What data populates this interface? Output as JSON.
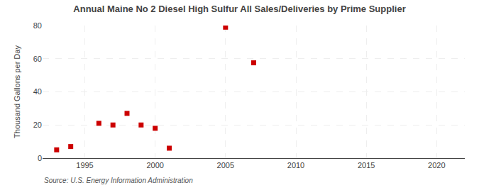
{
  "chart_data": {
    "type": "scatter",
    "title": "Annual Maine No 2 Diesel High Sulfur All Sales/Deliveries by Prime Supplier",
    "ylabel": "Thousand Gallons per Day",
    "annotations": [
      "Source: U.S. Energy Information Administration"
    ],
    "x": [
      1993,
      1994,
      1996,
      1997,
      1998,
      1999,
      2000,
      2001,
      2005,
      2007
    ],
    "values": [
      5.0,
      7.0,
      21.0,
      20.0,
      27.0,
      20.0,
      18.0,
      6.0,
      79.0,
      57.5
    ],
    "color": "#cc0000",
    "marker": "square",
    "xlim": [
      1992,
      2022
    ],
    "ylim": [
      0,
      80
    ],
    "xticks": [
      1995,
      2000,
      2005,
      2010,
      2015,
      2020
    ],
    "yticks": [
      0,
      20,
      40,
      60,
      80
    ],
    "grid": true
  }
}
